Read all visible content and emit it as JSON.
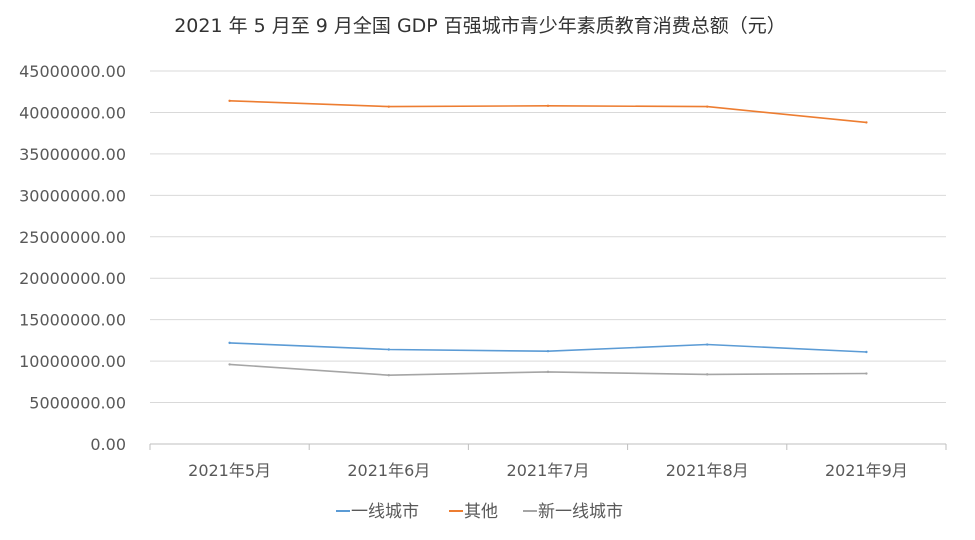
{
  "chart_data": {
    "type": "line",
    "title": "2021 年 5 月至 9 月全国 GDP 百强城市青少年素质教育消费总额（元）",
    "categories": [
      "2021年5月",
      "2021年6月",
      "2021年7月",
      "2021年8月",
      "2021年9月"
    ],
    "ylim": [
      0,
      45000000
    ],
    "yticks": [
      "0.00",
      "5000000.00",
      "10000000.00",
      "15000000.00",
      "20000000.00",
      "25000000.00",
      "30000000.00",
      "35000000.00",
      "40000000.00",
      "45000000.00"
    ],
    "grid": true,
    "legend_position": "bottom",
    "series": [
      {
        "name": "一线城市",
        "color": "#5b9bd5",
        "values": [
          12200000,
          11400000,
          11200000,
          12000000,
          11100000
        ]
      },
      {
        "name": "其他",
        "color": "#ed7d31",
        "values": [
          41400000,
          40700000,
          40800000,
          40700000,
          38800000
        ]
      },
      {
        "name": "新一线城市",
        "color": "#a5a5a5",
        "values": [
          9600000,
          8300000,
          8700000,
          8400000,
          8500000
        ]
      }
    ]
  }
}
